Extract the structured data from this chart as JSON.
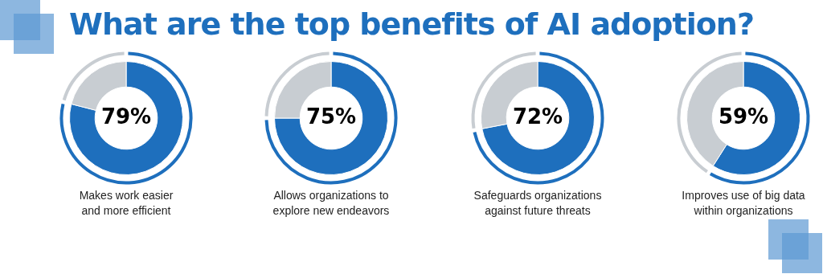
{
  "chart_data": [
    {
      "type": "donut",
      "title": "What are the top benefits of AI adoption?",
      "xlabel": "Makes work easier\nand more efficient",
      "categories": [
        null,
        null
      ],
      "values": [
        79,
        21
      ],
      "colors": [
        "#1e6fbd",
        "#c8cdd2"
      ],
      "value_labels": [
        "79%",
        null
      ],
      "legend": false
    },
    {
      "type": "donut",
      "xlabel": "Allows organizations to\nexplore new endeavors",
      "categories": [
        null,
        null
      ],
      "values": [
        75,
        25
      ],
      "colors": [
        "#1e6fbd",
        "#c8cdd2"
      ],
      "value_labels": [
        "75%",
        null
      ],
      "legend": false
    },
    {
      "type": "donut",
      "xlabel": "Safeguards organizations\nagainst future threats",
      "categories": [
        null,
        null
      ],
      "values": [
        72,
        28
      ],
      "colors": [
        "#1e6fbd",
        "#c8cdd2"
      ],
      "value_labels": [
        "72%",
        null
      ],
      "legend": false
    },
    {
      "type": "donut",
      "xlabel": "Improves use of big data\nwithin organizations",
      "categories": [
        null,
        null
      ],
      "values": [
        59,
        41
      ],
      "colors": [
        "#1e6fbd",
        "#c8cdd2"
      ],
      "value_labels": [
        "59%",
        null
      ],
      "legend": false
    }
  ]
}
